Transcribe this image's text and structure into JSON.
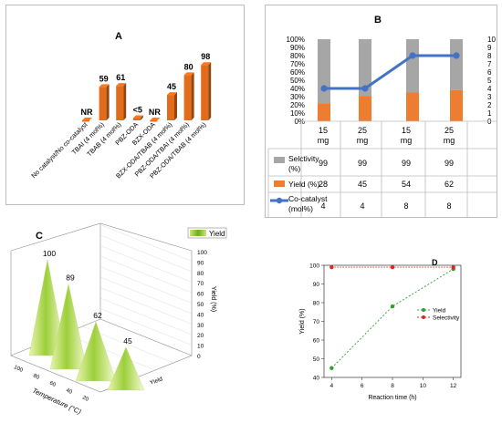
{
  "panels": {
    "A": {
      "label": "A",
      "chart_data": {
        "type": "bar",
        "categories": [
          "No catalyst/No co-catalyst",
          "TBAI (4 mol%)",
          "TBAB (4 mol%)",
          "PBZ-ODA",
          "BZX-ODA",
          "BZX-ODA/TBAB (4 mol%)",
          "PBZ-ODA/TBAI (4 mol%)",
          "PBZ-ODA/TBAB (4 mol%)"
        ],
        "values": [
          0,
          59,
          61,
          4,
          0,
          45,
          80,
          98
        ],
        "data_labels": [
          "NR",
          "59",
          "61",
          "<5",
          "NR",
          "45",
          "80",
          "98"
        ],
        "ylim": [
          0,
          100
        ],
        "bar_color": "#e36c1b"
      }
    },
    "B": {
      "label": "B",
      "chart_data": {
        "type": "bar",
        "categories": [
          "15 mg",
          "25 mg",
          "15 mg",
          "25 mg"
        ],
        "series": [
          {
            "name": "Selctivity (%)",
            "values": [
              99,
              99,
              99,
              99
            ],
            "color": "#a6a6a6"
          },
          {
            "name": "Yield (%)",
            "values": [
              28,
              45,
              54,
              62
            ],
            "color": "#ed7d31"
          },
          {
            "name": "Co-catalyst (mol%)",
            "values": [
              4,
              4,
              8,
              8
            ],
            "color": "#4472c4"
          }
        ],
        "stacked_percent": true,
        "bar_yield_fraction": [
          0.22,
          0.31,
          0.35,
          0.38
        ],
        "left_axis_ticks": [
          "0%",
          "10%",
          "20%",
          "30%",
          "40%",
          "50%",
          "60%",
          "70%",
          "80%",
          "90%",
          "100%"
        ],
        "right_axis_ticks": [
          "0",
          "1",
          "2",
          "3",
          "4",
          "5",
          "6",
          "7",
          "8",
          "9",
          "10"
        ],
        "ylim_left": [
          0,
          100
        ],
        "ylim_right": [
          0,
          10
        ]
      }
    },
    "C": {
      "label": "C",
      "chart_data": {
        "type": "area",
        "legend": "Yield",
        "values": [
          100,
          89,
          62,
          45
        ],
        "data_labels": [
          "100",
          "89",
          "62",
          "45"
        ],
        "xlabel": "Temperature (°C)",
        "ylabel": "Yield (%)",
        "depth_label": "Yield",
        "temperature_ticks": [
          "100",
          "80",
          "60",
          "40",
          "20"
        ],
        "yield_ticks": [
          "0",
          "10",
          "20",
          "30",
          "40",
          "50",
          "60",
          "70",
          "80",
          "90",
          "100"
        ],
        "zlim": [
          0,
          100
        ]
      }
    },
    "D": {
      "label": "D",
      "chart_data": {
        "type": "line",
        "x": [
          4,
          8,
          12
        ],
        "series": [
          {
            "name": "Yield",
            "values": [
              45,
              78,
              98
            ],
            "color": "#2ca02c"
          },
          {
            "name": "Selectivity",
            "values": [
              99,
              99,
              99
            ],
            "color": "#d62728"
          }
        ],
        "xlabel": "Reaction time (h)",
        "ylabel": "Yield (%)",
        "xlim": [
          3.5,
          12.5
        ],
        "ylim": [
          40,
          100
        ],
        "x_ticks": [
          "4",
          "6",
          "8",
          "10",
          "12"
        ],
        "y_ticks": [
          "40",
          "50",
          "60",
          "70",
          "80",
          "90",
          "100"
        ]
      }
    }
  }
}
